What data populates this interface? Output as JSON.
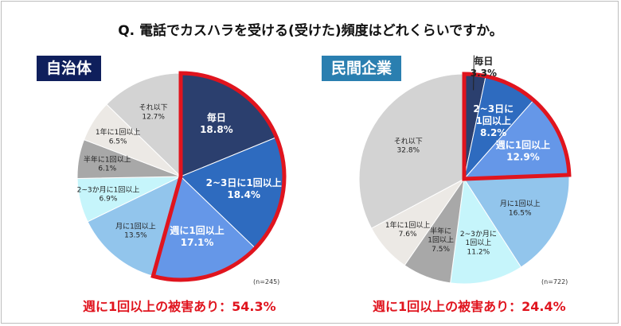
{
  "title": "Q. 電話でカスハラを受ける(受けた)頻度はどれくらいですか。",
  "colors": {
    "毎日": "#2b3f6e",
    "2~3日に1回以上": "#2e6bbf",
    "週に1回以上": "#6597e8",
    "月に1回以上": "#92c5ec",
    "2~3か月に1回以上": "#c6f5fb",
    "半年に1回以上": "#a8a8a8",
    "1年に1回以上": "#ece9e5",
    "それ以下": "#d3d3d3",
    "highlight": "#e0141e"
  },
  "chart_data": [
    {
      "type": "pie",
      "title": "自治体",
      "title_color": "#0f1f5c",
      "n_label": "(n=245)",
      "highlight_label": "週に1回以上の被害あり：54.3%",
      "highlighted_categories": [
        "毎日",
        "2~3日に1回以上",
        "週に1回以上"
      ],
      "categories": [
        "毎日",
        "2~3日に1回以上",
        "週に1回以上",
        "月に1回以上",
        "2~3か月に1回以上",
        "半年に1回以上",
        "1年に1回以上",
        "それ以下"
      ],
      "display_labels": [
        "毎日",
        "2~3日に1回以上",
        "週に1回以上",
        "月に1回以上",
        "2~3か月に1回以上",
        "半年に1回以上",
        "1年に1回以上",
        "それ以下"
      ],
      "values": [
        18.8,
        18.4,
        17.1,
        13.5,
        6.9,
        6.1,
        6.5,
        12.7
      ],
      "value_labels": [
        "18.8%",
        "18.4%",
        "17.1%",
        "13.5%",
        "6.9%",
        "6.1%",
        "6.5%",
        "12.7%"
      ]
    },
    {
      "type": "pie",
      "title": "民間企業",
      "title_color": "#2a7fb0",
      "n_label": "(n=722)",
      "highlight_label": "週に1回以上の被害あり：24.4%",
      "highlighted_categories": [
        "毎日",
        "2~3日に1回以上",
        "週に1回以上"
      ],
      "categories": [
        "毎日",
        "2~3日に1回以上",
        "週に1回以上",
        "月に1回以上",
        "2~3か月に1回以上",
        "半年に1回以上",
        "1年に1回以上",
        "それ以下"
      ],
      "display_labels": [
        "毎日",
        "2~3日に\n1回以上",
        "週に1回以上",
        "月に1回以上",
        "2~3か月に\n1回以上",
        "半年に\n1回以上",
        "1年に1回以上",
        "それ以下"
      ],
      "values": [
        3.3,
        8.2,
        12.9,
        16.5,
        11.2,
        7.5,
        7.6,
        32.8
      ],
      "value_labels": [
        "3.3%",
        "8.2%",
        "12.9%",
        "16.5%",
        "11.2%",
        "7.5%",
        "7.6%",
        "32.8%"
      ]
    }
  ]
}
